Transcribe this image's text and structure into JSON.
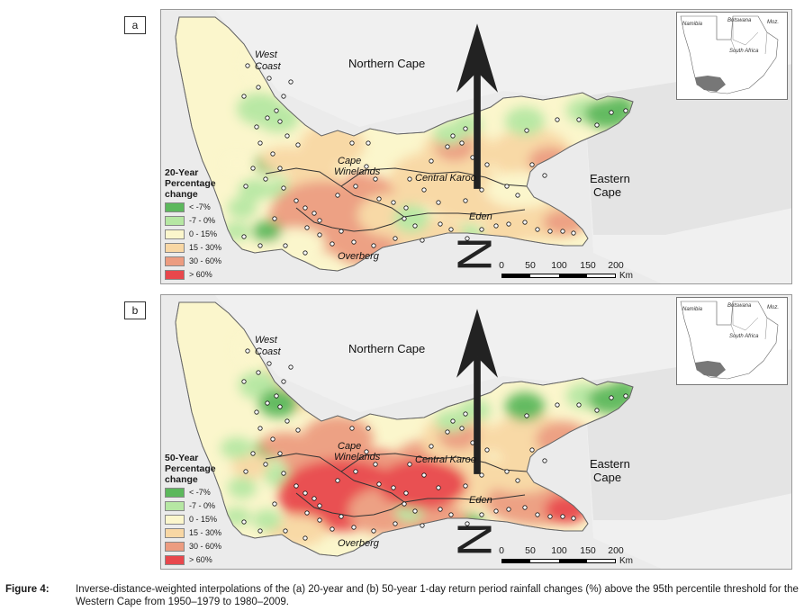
{
  "panels": [
    {
      "label": "a",
      "legend": {
        "title_lines": [
          "20-Year",
          "Percentage",
          "change"
        ],
        "items": [
          {
            "label": "< -7%",
            "color": "#5cb85c"
          },
          {
            "label": "-7 - 0%",
            "color": "#b6e7a3"
          },
          {
            "label": "0 - 15%",
            "color": "#fbf6cc"
          },
          {
            "label": "15 - 30%",
            "color": "#f8d7a4"
          },
          {
            "label": "30 - 60%",
            "color": "#ec9c80"
          },
          {
            "label": "> 60%",
            "color": "#e8474c"
          }
        ]
      }
    },
    {
      "label": "b",
      "legend": {
        "title_lines": [
          "50-Year",
          "Percentage",
          "change"
        ],
        "items": [
          {
            "label": "< -7%",
            "color": "#5cb85c"
          },
          {
            "label": "-7 - 0%",
            "color": "#b6e7a3"
          },
          {
            "label": "0 - 15%",
            "color": "#fbf6cc"
          },
          {
            "label": "15 - 30%",
            "color": "#f8d7a4"
          },
          {
            "label": "30 - 60%",
            "color": "#ec9c80"
          },
          {
            "label": "> 60%",
            "color": "#e8474c"
          }
        ]
      }
    }
  ],
  "places": {
    "west_coast": [
      "West",
      "Coast"
    ],
    "northern_cape": "Northern Cape",
    "cape_winelands": [
      "Cape",
      "Winelands"
    ],
    "central_karoo": "Central Karoo",
    "eastern_cape": [
      "Eastern",
      "Cape"
    ],
    "eden": "Eden",
    "overberg": "Overberg"
  },
  "inset_labels": {
    "namibia": "Namibia",
    "botswana": "Botswana",
    "moz": "Moz.",
    "south_africa": "South Africa"
  },
  "north_label": "N",
  "scale": {
    "ticks": [
      "0",
      "50",
      "100",
      "150",
      "200"
    ],
    "unit": "Km"
  },
  "caption": {
    "number": "Figure 4:",
    "text": "Inverse-distance-weighted interpolations of the (a) 20-year and (b) 50-year 1-day return period rainfall changes (%) above the 95th percentile threshold for the Western Cape from 1950–1979 to 1980–2009."
  }
}
